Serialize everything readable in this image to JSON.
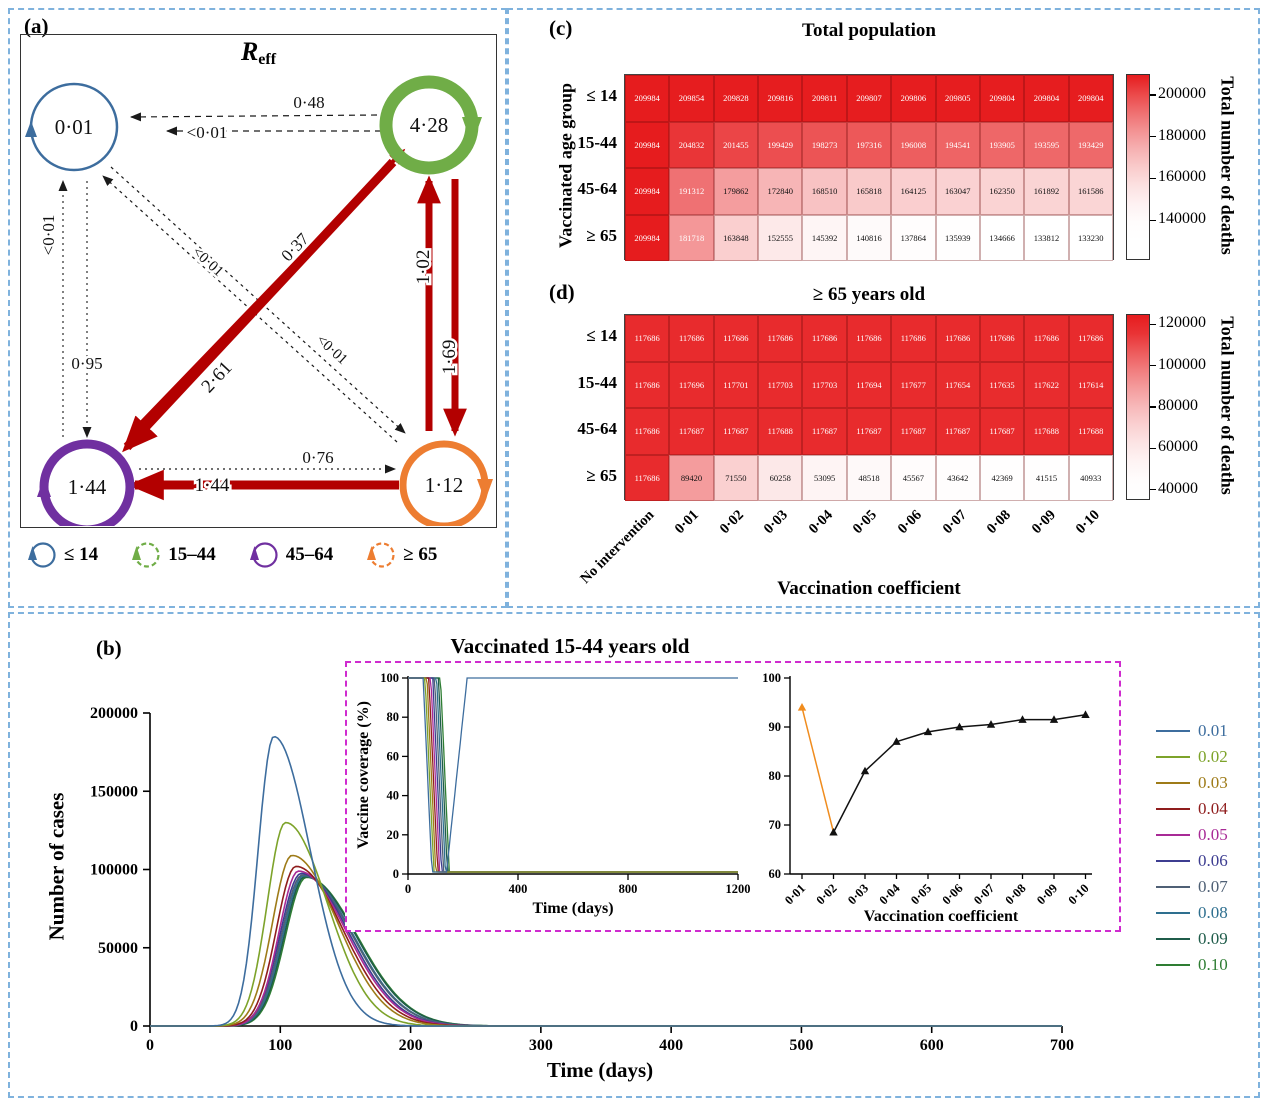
{
  "panels": {
    "a": "(a)",
    "b": "(b)",
    "c": "(c)",
    "d": "(d)"
  },
  "colors": {
    "figure_border": "#7fb2dd",
    "inset_border": "#cf2bcf",
    "heat_red": "#e61c1e",
    "arrow_red": "#b30000"
  },
  "panel_a": {
    "title_base": "R",
    "title_sub": "eff",
    "nodes": {
      "age_0_14": {
        "value": "0·01",
        "color": "#3d6d9e"
      },
      "age_15_44": {
        "value": "4·28",
        "color": "#70ad47"
      },
      "age_45_64": {
        "value": "1·44",
        "color": "#7030a0"
      },
      "age_65": {
        "value": "1·12",
        "color": "#ed7d31"
      }
    },
    "edges": {
      "top_mid": "0·48",
      "top_near_blue": "<0·01",
      "left_up": "<0·01",
      "left_down": "0·95",
      "diag_green_purple": "2·61",
      "diag_purple_green": "0·37",
      "diag_blue_orange": "<0·01",
      "diag_orange_blue": "<0·01",
      "right_up": "1·02",
      "right_down": "1·69",
      "bottom_main": "1·44",
      "bottom_secondary": "0·76"
    },
    "legend": [
      {
        "label": "≤ 14",
        "color": "#3d6d9e",
        "dashed": false
      },
      {
        "label": "15–44",
        "color": "#70ad47",
        "dashed": true
      },
      {
        "label": "45–64",
        "color": "#7030a0",
        "dashed": false
      },
      {
        "label": "≥ 65",
        "color": "#ed7d31",
        "dashed": true
      }
    ]
  },
  "heatmap_shared": {
    "ylabel": "Vaccinated age group",
    "xlabel": "Vaccination coefficient",
    "colorbar_label": "Total number of deaths"
  },
  "chart_data": [
    {
      "id": "heatmap_total_population",
      "type": "heatmap",
      "title": "Total population",
      "rows": [
        "≤ 14",
        "15-44",
        "45-64",
        "≥ 65"
      ],
      "cols": [
        "No intervention",
        "0·01",
        "0·02",
        "0·03",
        "0·04",
        "0·05",
        "0·06",
        "0·07",
        "0·08",
        "0·09",
        "0·10"
      ],
      "values": [
        [
          209984,
          209854,
          209828,
          209816,
          209811,
          209807,
          209806,
          209805,
          209804,
          209804,
          209804
        ],
        [
          209984,
          204832,
          201455,
          199429,
          198273,
          197316,
          196008,
          194541,
          193905,
          193595,
          193429
        ],
        [
          209984,
          191312,
          179862,
          172840,
          168510,
          165818,
          164125,
          163047,
          162350,
          161892,
          161586
        ],
        [
          209984,
          181718,
          163848,
          152555,
          145392,
          140816,
          137864,
          135939,
          134666,
          133812,
          133230
        ]
      ],
      "scale": {
        "vmin": 133000,
        "vmax": 210000,
        "gamma": 1.7
      },
      "colorbar": {
        "range": [
          121000,
          210000
        ],
        "ticks": [
          200000,
          180000,
          160000,
          140000
        ]
      }
    },
    {
      "id": "heatmap_ge65",
      "type": "heatmap",
      "title": "≥ 65 years old",
      "rows": [
        "≤ 14",
        "15-44",
        "45-64",
        "≥ 65"
      ],
      "cols": [
        "No intervention",
        "0·01",
        "0·02",
        "0·03",
        "0·04",
        "0·05",
        "0·06",
        "0·07",
        "0·08",
        "0·09",
        "0·10"
      ],
      "values": [
        [
          117686,
          117686,
          117686,
          117686,
          117686,
          117686,
          117686,
          117686,
          117686,
          117686,
          117686
        ],
        [
          117686,
          117696,
          117701,
          117703,
          117703,
          117694,
          117677,
          117654,
          117635,
          117622,
          117614
        ],
        [
          117686,
          117687,
          117687,
          117688,
          117687,
          117687,
          117687,
          117687,
          117687,
          117688,
          117688
        ],
        [
          117686,
          89420,
          71550,
          60258,
          53095,
          48518,
          45567,
          43642,
          42369,
          41515,
          40933
        ]
      ],
      "scale": {
        "vmin": 39000,
        "vmax": 121000,
        "gamma": 1.7
      },
      "colorbar": {
        "range": [
          35000,
          125000
        ],
        "ticks": [
          120000,
          100000,
          80000,
          60000,
          40000
        ]
      }
    },
    {
      "id": "cases_by_time",
      "type": "line",
      "title": "Vaccinated 15-44 years old",
      "xlabel": "Time (days)",
      "ylabel": "Number of cases",
      "xlim": [
        0,
        700
      ],
      "ylim": [
        0,
        200000
      ],
      "x_ticks": [
        0,
        100,
        200,
        300,
        400,
        500,
        600,
        700
      ],
      "y_ticks": [
        0,
        50000,
        100000,
        150000,
        200000
      ],
      "series": [
        {
          "label": "0.01",
          "color": "#3d6d9e",
          "peak": 185000,
          "peak_day": 95,
          "rise_sd": 12,
          "fall_sd": 28
        },
        {
          "label": "0.02",
          "color": "#7da32a",
          "peak": 130000,
          "peak_day": 104,
          "rise_sd": 14,
          "fall_sd": 32
        },
        {
          "label": "0.03",
          "color": "#9e7b18",
          "peak": 109000,
          "peak_day": 109,
          "rise_sd": 15,
          "fall_sd": 35
        },
        {
          "label": "0.04",
          "color": "#8f1d1d",
          "peak": 102000,
          "peak_day": 112,
          "rise_sd": 15,
          "fall_sd": 36
        },
        {
          "label": "0.05",
          "color": "#a82a96",
          "peak": 99000,
          "peak_day": 114,
          "rise_sd": 15,
          "fall_sd": 37
        },
        {
          "label": "0.06",
          "color": "#3d3d91",
          "peak": 97500,
          "peak_day": 116,
          "rise_sd": 16,
          "fall_sd": 37
        },
        {
          "label": "0.07",
          "color": "#4f6075",
          "peak": 96500,
          "peak_day": 117,
          "rise_sd": 16,
          "fall_sd": 38
        },
        {
          "label": "0.08",
          "color": "#2e6f8f",
          "peak": 96000,
          "peak_day": 118,
          "rise_sd": 16,
          "fall_sd": 38
        },
        {
          "label": "0.09",
          "color": "#1f5c4a",
          "peak": 95500,
          "peak_day": 119,
          "rise_sd": 16,
          "fall_sd": 39
        },
        {
          "label": "0.10",
          "color": "#2e7d33",
          "peak": 95000,
          "peak_day": 120,
          "rise_sd": 16,
          "fall_sd": 39
        }
      ]
    },
    {
      "id": "vaccine_coverage",
      "type": "line",
      "ylabel": "Vaccine coverage (%)",
      "xlabel": "Time (days)",
      "xlim": [
        0,
        1200
      ],
      "ylim": [
        0,
        100
      ],
      "x_ticks": [
        0,
        400,
        800,
        1200
      ],
      "y_ticks": [
        0,
        20,
        40,
        60,
        80,
        100
      ],
      "series": [
        {
          "label": "0.01",
          "drop_start": 55,
          "recovers": true
        },
        {
          "label": "0.02",
          "drop_start": 62,
          "recovers": false
        },
        {
          "label": "0.03",
          "drop_start": 69,
          "recovers": false
        },
        {
          "label": "0.04",
          "drop_start": 76,
          "recovers": false
        },
        {
          "label": "0.05",
          "drop_start": 83,
          "recovers": false
        },
        {
          "label": "0.06",
          "drop_start": 90,
          "recovers": false
        },
        {
          "label": "0.07",
          "drop_start": 97,
          "recovers": false
        },
        {
          "label": "0.08",
          "drop_start": 104,
          "recovers": false
        },
        {
          "label": "0.09",
          "drop_start": 111,
          "recovers": false
        },
        {
          "label": "0.10",
          "drop_start": 118,
          "recovers": false
        }
      ]
    },
    {
      "id": "coverage_by_coefficient",
      "type": "scatter-line",
      "xlabel": "Vaccination coefficient",
      "x_labels": [
        "0·01",
        "0·02",
        "0·03",
        "0·04",
        "0·05",
        "0·06",
        "0·07",
        "0·08",
        "0·09",
        "0·10"
      ],
      "ylim": [
        60,
        100
      ],
      "y_ticks": [
        60,
        70,
        80,
        90,
        100
      ],
      "values": [
        94,
        68.5,
        81,
        87,
        89,
        90,
        90.5,
        91.5,
        91.5,
        92.5
      ],
      "first_segment_color": "#f08c1e"
    }
  ]
}
